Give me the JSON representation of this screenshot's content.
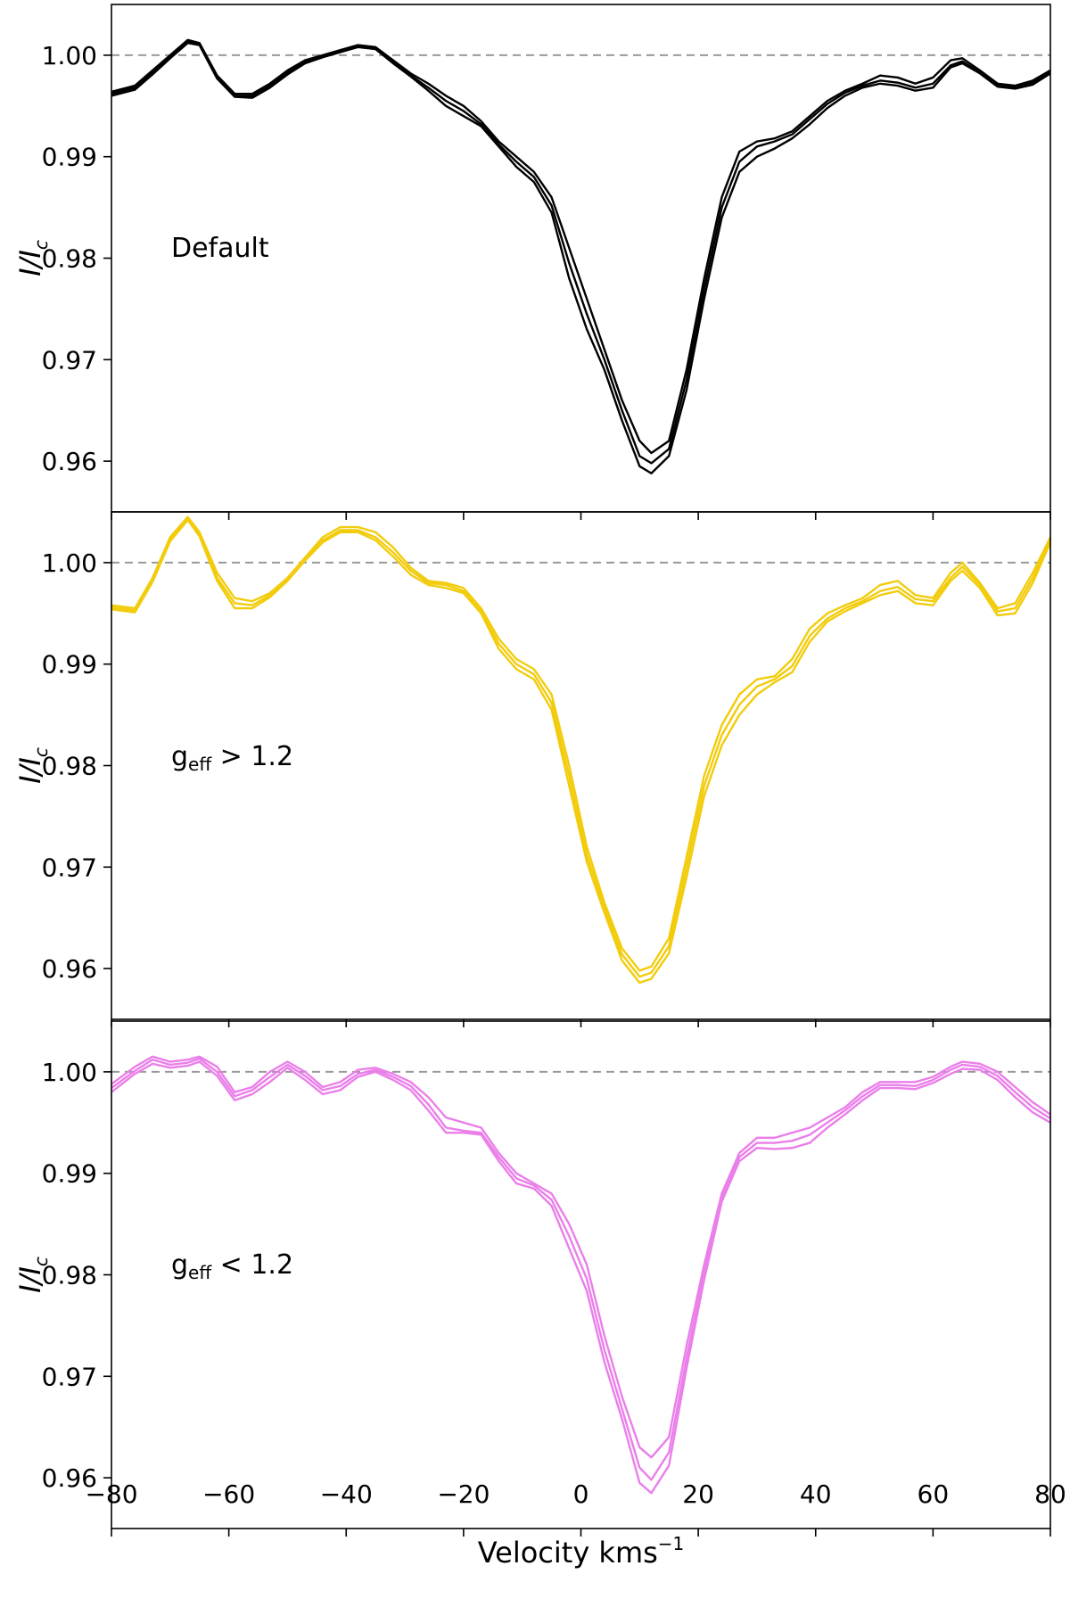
{
  "chart_data": {
    "type": "line",
    "shared_x": true,
    "xlabel": "Velocity kms",
    "xlabel_sup": "−1",
    "xlim": [
      -80,
      80
    ],
    "xticks": [
      -80,
      -60,
      -40,
      -20,
      0,
      20,
      40,
      60,
      80
    ],
    "xtick_labels": [
      "−80",
      "−60",
      "−40",
      "−20",
      "0",
      "20",
      "40",
      "60",
      "80"
    ],
    "reference_line": {
      "y": 1.0,
      "style": "dashed",
      "color": "#999999"
    },
    "panels": [
      {
        "annotation": "Default",
        "annotation_main": "",
        "annotation_sub": "",
        "annotation_rest": "",
        "ylabel_main": "I/I",
        "ylabel_sub": "c",
        "ylim": [
          0.955,
          1.005
        ],
        "yticks": [
          0.96,
          0.97,
          0.98,
          0.99,
          1.0
        ],
        "ytick_labels": [
          "0.96",
          "0.97",
          "0.98",
          "0.99",
          "1.00"
        ],
        "color": "#000000",
        "x": [
          -80,
          -76,
          -73,
          -70,
          -67,
          -65,
          -62,
          -59,
          -56,
          -53,
          -50,
          -47,
          -44,
          -41,
          -38,
          -35,
          -32,
          -29,
          -26,
          -23,
          -20,
          -17,
          -14,
          -11,
          -8,
          -5,
          -2,
          1,
          4,
          7,
          10,
          12,
          15,
          18,
          21,
          24,
          27,
          30,
          33,
          36,
          39,
          42,
          45,
          48,
          51,
          54,
          57,
          60,
          63,
          65,
          68,
          71,
          74,
          77,
          80
        ],
        "series": [
          {
            "values": [
              0.9964,
              0.997,
              0.9985,
              1.0,
              1.0015,
              1.0012,
              0.998,
              0.9962,
              0.9962,
              0.9972,
              0.9985,
              0.9995,
              1.0,
              1.0005,
              1.001,
              1.0008,
              0.9995,
              0.9982,
              0.9972,
              0.996,
              0.995,
              0.9935,
              0.9915,
              0.99,
              0.9885,
              0.986,
              0.981,
              0.976,
              0.971,
              0.966,
              0.962,
              0.9608,
              0.962,
              0.969,
              0.978,
              0.986,
              0.9905,
              0.9915,
              0.9918,
              0.9925,
              0.994,
              0.9955,
              0.9965,
              0.9972,
              0.998,
              0.9978,
              0.9972,
              0.9978,
              0.9995,
              0.9997,
              0.9985,
              0.9972,
              0.997,
              0.9975,
              0.9985
            ]
          },
          {
            "values": [
              0.9962,
              0.9968,
              0.9983,
              0.9999,
              1.0014,
              1.0011,
              0.9978,
              0.996,
              0.996,
              0.997,
              0.9983,
              0.9994,
              0.9999,
              1.0004,
              1.0009,
              1.0007,
              0.9993,
              0.998,
              0.9968,
              0.9955,
              0.9945,
              0.9932,
              0.9912,
              0.9895,
              0.988,
              0.9852,
              0.9795,
              0.9745,
              0.97,
              0.965,
              0.9605,
              0.9598,
              0.9612,
              0.968,
              0.977,
              0.985,
              0.9895,
              0.991,
              0.9915,
              0.9922,
              0.9937,
              0.9952,
              0.9963,
              0.997,
              0.9975,
              0.9973,
              0.9968,
              0.9972,
              0.999,
              0.9994,
              0.9983,
              0.997,
              0.9968,
              0.9973,
              0.9983
            ]
          },
          {
            "values": [
              0.996,
              0.9966,
              0.9981,
              0.9997,
              1.0012,
              1.001,
              0.9977,
              0.9959,
              0.9958,
              0.9968,
              0.9981,
              0.9992,
              0.9998,
              1.0003,
              1.0008,
              1.0006,
              0.9992,
              0.9979,
              0.9965,
              0.995,
              0.994,
              0.993,
              0.991,
              0.989,
              0.9875,
              0.9845,
              0.978,
              0.973,
              0.969,
              0.964,
              0.9595,
              0.9588,
              0.9605,
              0.967,
              0.976,
              0.984,
              0.9885,
              0.99,
              0.9908,
              0.9918,
              0.9932,
              0.9948,
              0.996,
              0.9968,
              0.9972,
              0.997,
              0.9965,
              0.9968,
              0.9988,
              0.9992,
              0.9982,
              0.9969,
              0.9967,
              0.9971,
              0.9982
            ]
          }
        ]
      },
      {
        "annotation": "",
        "annotation_main": "g",
        "annotation_sub": "eff",
        "annotation_rest": " > 1.2",
        "ylabel_main": "I/I",
        "ylabel_sub": "c",
        "ylim": [
          0.955,
          1.005
        ],
        "yticks": [
          0.96,
          0.97,
          0.98,
          0.99,
          1.0
        ],
        "ytick_labels": [
          "0.96",
          "0.97",
          "0.98",
          "0.99",
          "1.00"
        ],
        "color": "#f2cc0c",
        "x": [
          -80,
          -76,
          -73,
          -70,
          -67,
          -65,
          -62,
          -59,
          -56,
          -53,
          -50,
          -47,
          -44,
          -41,
          -38,
          -35,
          -32,
          -29,
          -26,
          -23,
          -20,
          -17,
          -14,
          -11,
          -8,
          -5,
          -2,
          1,
          4,
          7,
          10,
          12,
          15,
          18,
          21,
          24,
          27,
          30,
          33,
          36,
          39,
          42,
          45,
          48,
          51,
          54,
          57,
          60,
          63,
          65,
          68,
          71,
          74,
          77,
          80
        ],
        "series": [
          {
            "values": [
              0.9958,
              0.9955,
              0.9985,
              1.0025,
              1.0045,
              1.003,
              0.999,
              0.9965,
              0.9962,
              0.997,
              0.9985,
              1.0005,
              1.0025,
              1.0035,
              1.0035,
              1.003,
              1.0015,
              0.9995,
              0.9982,
              0.998,
              0.9975,
              0.9955,
              0.9925,
              0.9905,
              0.9895,
              0.987,
              0.98,
              0.972,
              0.9665,
              0.962,
              0.9598,
              0.9602,
              0.963,
              0.971,
              0.979,
              0.984,
              0.987,
              0.9885,
              0.9888,
              0.9905,
              0.9935,
              0.995,
              0.9958,
              0.9965,
              0.9978,
              0.9982,
              0.9968,
              0.9965,
              0.999,
              1.0,
              0.998,
              0.9955,
              0.996,
              0.999,
              1.0025
            ]
          },
          {
            "values": [
              0.9956,
              0.9953,
              0.9983,
              1.0023,
              1.0044,
              1.0028,
              0.9985,
              0.996,
              0.9958,
              0.9968,
              0.9983,
              1.0003,
              1.0022,
              1.0032,
              1.0032,
              1.0025,
              1.001,
              0.9992,
              0.998,
              0.9978,
              0.9972,
              0.9952,
              0.992,
              0.99,
              0.989,
              0.9862,
              0.979,
              0.9712,
              0.966,
              0.9614,
              0.9592,
              0.9596,
              0.9622,
              0.97,
              0.978,
              0.983,
              0.986,
              0.9878,
              0.9885,
              0.9898,
              0.9928,
              0.9945,
              0.9955,
              0.9962,
              0.9972,
              0.9976,
              0.9964,
              0.9962,
              0.9985,
              0.9996,
              0.9978,
              0.9952,
              0.9955,
              0.9985,
              1.0022
            ]
          },
          {
            "values": [
              0.9954,
              0.9951,
              0.9981,
              1.0021,
              1.0042,
              1.0026,
              0.9982,
              0.9955,
              0.9955,
              0.9966,
              0.9982,
              1.0002,
              1.002,
              1.003,
              1.003,
              1.0022,
              1.0006,
              0.9988,
              0.9978,
              0.9975,
              0.997,
              0.995,
              0.9915,
              0.9895,
              0.9885,
              0.9855,
              0.978,
              0.9705,
              0.9655,
              0.9608,
              0.9586,
              0.959,
              0.9615,
              0.969,
              0.977,
              0.982,
              0.985,
              0.987,
              0.9882,
              0.9892,
              0.9922,
              0.9942,
              0.9952,
              0.996,
              0.9968,
              0.9972,
              0.996,
              0.9958,
              0.9982,
              0.9992,
              0.9975,
              0.9948,
              0.995,
              0.998,
              1.002
            ]
          }
        ]
      },
      {
        "annotation": "",
        "annotation_main": "g",
        "annotation_sub": "eff",
        "annotation_rest": " < 1.2",
        "ylabel_main": "I/I",
        "ylabel_sub": "c",
        "ylim": [
          0.955,
          1.005
        ],
        "yticks": [
          0.96,
          0.97,
          0.98,
          0.99,
          1.0
        ],
        "ytick_labels": [
          "0.96",
          "0.97",
          "0.98",
          "0.99",
          "1.00"
        ],
        "color": "#ea7fea",
        "x": [
          -80,
          -76,
          -73,
          -70,
          -67,
          -65,
          -62,
          -59,
          -56,
          -53,
          -50,
          -47,
          -44,
          -41,
          -38,
          -35,
          -32,
          -29,
          -26,
          -23,
          -20,
          -17,
          -14,
          -11,
          -8,
          -5,
          -2,
          1,
          4,
          7,
          10,
          12,
          15,
          18,
          21,
          24,
          27,
          30,
          33,
          36,
          39,
          42,
          45,
          48,
          51,
          54,
          57,
          60,
          63,
          65,
          68,
          71,
          74,
          77,
          80
        ],
        "series": [
          {
            "values": [
              0.9988,
              1.0005,
              1.0015,
              1.001,
              1.0012,
              1.0015,
              1.0005,
              0.998,
              0.9985,
              1.0,
              1.001,
              1.0,
              0.9985,
              0.999,
              1.0002,
              1.0004,
              0.9998,
              0.999,
              0.9975,
              0.9955,
              0.995,
              0.9945,
              0.992,
              0.99,
              0.989,
              0.988,
              0.985,
              0.981,
              0.974,
              0.968,
              0.963,
              0.962,
              0.964,
              0.973,
              0.981,
              0.988,
              0.992,
              0.9935,
              0.9935,
              0.994,
              0.9945,
              0.9955,
              0.9965,
              0.998,
              0.999,
              0.999,
              0.999,
              0.9995,
              1.0005,
              1.001,
              1.0008,
              1.0,
              0.9985,
              0.997,
              0.9958
            ]
          },
          {
            "values": [
              0.9984,
              1.0001,
              1.0012,
              1.0007,
              1.0009,
              1.0013,
              1.0,
              0.9976,
              0.9982,
              0.9995,
              1.0007,
              0.9996,
              0.9982,
              0.9986,
              0.9998,
              1.0002,
              0.9995,
              0.9986,
              0.9968,
              0.9945,
              0.9942,
              0.994,
              0.9916,
              0.9895,
              0.9888,
              0.9874,
              0.9838,
              0.9796,
              0.9726,
              0.9668,
              0.961,
              0.9598,
              0.9625,
              0.9718,
              0.9802,
              0.9876,
              0.9916,
              0.993,
              0.993,
              0.9932,
              0.9938,
              0.995,
              0.9962,
              0.9976,
              0.9987,
              0.9987,
              0.9986,
              0.9992,
              1.0002,
              1.0007,
              1.0005,
              0.9996,
              0.998,
              0.9965,
              0.9954
            ]
          },
          {
            "values": [
              0.998,
              0.9998,
              1.0008,
              1.0004,
              1.0006,
              1.001,
              0.9996,
              0.9972,
              0.9978,
              0.999,
              1.0004,
              0.9992,
              0.9978,
              0.9982,
              0.9995,
              1.0,
              0.9992,
              0.9982,
              0.9962,
              0.994,
              0.994,
              0.9938,
              0.9912,
              0.989,
              0.9885,
              0.9868,
              0.9826,
              0.9784,
              0.9714,
              0.9658,
              0.9595,
              0.9585,
              0.9612,
              0.9708,
              0.9795,
              0.9872,
              0.9912,
              0.9925,
              0.9924,
              0.9925,
              0.993,
              0.9945,
              0.9958,
              0.9972,
              0.9984,
              0.9984,
              0.9983,
              0.9989,
              0.9998,
              1.0003,
              1.0002,
              0.9992,
              0.9975,
              0.996,
              0.995
            ]
          }
        ]
      }
    ]
  }
}
